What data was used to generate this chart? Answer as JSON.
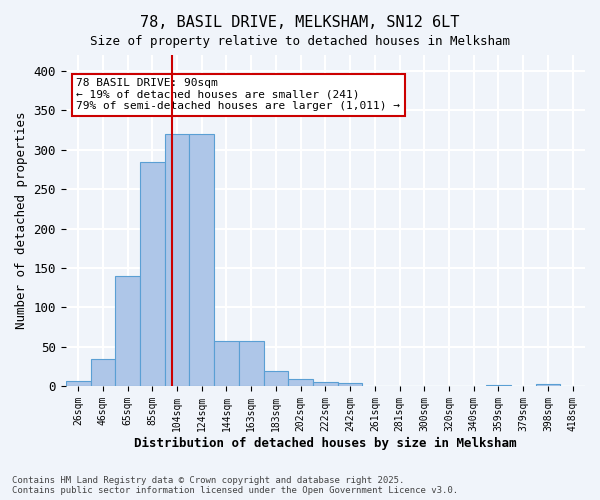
{
  "title1": "78, BASIL DRIVE, MELKSHAM, SN12 6LT",
  "title2": "Size of property relative to detached houses in Melksham",
  "xlabel": "Distribution of detached houses by size in Melksham",
  "ylabel": "Number of detached properties",
  "bar_color": "#aec6e8",
  "bar_edge_color": "#5a9fd4",
  "bin_labels": [
    "26sqm",
    "46sqm",
    "65sqm",
    "85sqm",
    "104sqm",
    "124sqm",
    "144sqm",
    "163sqm",
    "183sqm",
    "202sqm",
    "222sqm",
    "242sqm",
    "261sqm",
    "281sqm",
    "300sqm",
    "320sqm",
    "340sqm",
    "359sqm",
    "379sqm",
    "398sqm",
    "418sqm"
  ],
  "bar_heights": [
    7,
    35,
    140,
    285,
    320,
    320,
    57,
    57,
    20,
    10,
    5,
    4,
    0,
    0,
    0,
    1,
    0,
    2,
    0,
    3,
    0
  ],
  "red_line_x": 3.78,
  "annotation_text": "78 BASIL DRIVE: 90sqm\n← 19% of detached houses are smaller (241)\n79% of semi-detached houses are larger (1,011) →",
  "annotation_box_color": "#ffffff",
  "annotation_box_edge_color": "#cc0000",
  "ylim": [
    0,
    420
  ],
  "yticks": [
    0,
    50,
    100,
    150,
    200,
    250,
    300,
    350,
    400
  ],
  "background_color": "#f0f4fa",
  "grid_color": "#ffffff",
  "footer": "Contains HM Land Registry data © Crown copyright and database right 2025.\nContains public sector information licensed under the Open Government Licence v3.0."
}
